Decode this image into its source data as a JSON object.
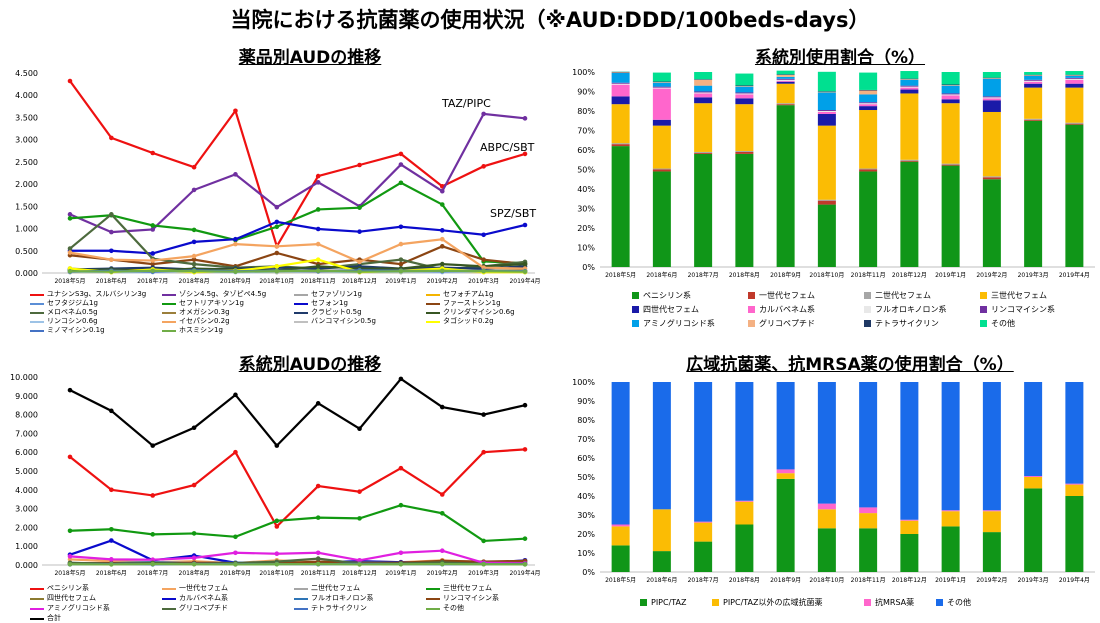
{
  "page": {
    "title": "当院における抗菌薬の使用状況（※AUD:DDD/100beds-days）"
  },
  "months": [
    "2018年5月",
    "2018年6月",
    "2018年7月",
    "2018年8月",
    "2018年9月",
    "2018年10月",
    "2018年11月",
    "2018年12月",
    "2019年1月",
    "2019年2月",
    "2019年3月",
    "2019年4月"
  ],
  "chart_data": [
    {
      "id": "drug_aud",
      "type": "line",
      "title": "薬品別AUDの推移",
      "ylim": [
        0,
        4.5
      ],
      "yticks": [
        "0.000",
        "0.500",
        "1.000",
        "1.500",
        "2.000",
        "2.500",
        "3.000",
        "3.500",
        "4.000",
        "4.500"
      ],
      "annotations": [
        "TAZ/PIPC",
        "ABPC/SBT",
        "SPZ/SBT"
      ],
      "series": [
        {
          "name": "ユナシンS3g、スルバシリン3g",
          "color": "#ee1111",
          "values": [
            4.32,
            3.04,
            2.7,
            2.38,
            3.65,
            0.6,
            2.18,
            2.43,
            2.68,
            1.95,
            2.4,
            2.68
          ]
        },
        {
          "name": "ゾシン4.5g、タゾピペ4.5g",
          "color": "#7030a0",
          "values": [
            1.32,
            0.92,
            0.98,
            1.87,
            2.22,
            1.48,
            2.04,
            1.5,
            2.44,
            1.84,
            3.58,
            3.48
          ]
        },
        {
          "name": "セファゾリン1g",
          "color": "#a6a6a6",
          "values": [
            0.05,
            0.03,
            0.04,
            0.03,
            0.05,
            0.06,
            0.04,
            0.03,
            0.05,
            0.05,
            0.04,
            0.04
          ]
        },
        {
          "name": "セフォチアム1g",
          "color": "#f4b400",
          "values": [
            0.02,
            0.02,
            0.03,
            0.02,
            0.03,
            0.02,
            0.03,
            0.02,
            0.02,
            0.03,
            0.02,
            0.02
          ]
        },
        {
          "name": "セフタジジム1g",
          "color": "#5b8ed6",
          "values": [
            0.05,
            0.04,
            0.05,
            0.06,
            0.04,
            0.05,
            0.05,
            0.06,
            0.05,
            0.05,
            0.04,
            0.05
          ]
        },
        {
          "name": "セフトリアキソン1g",
          "color": "#119911",
          "values": [
            1.23,
            1.3,
            1.07,
            0.97,
            0.74,
            1.04,
            1.43,
            1.47,
            2.03,
            1.54,
            0.26,
            0.22
          ]
        },
        {
          "name": "セフォン1g",
          "color": "#0a0acc",
          "values": [
            0.5,
            0.5,
            0.44,
            0.7,
            0.76,
            1.15,
            0.99,
            0.93,
            1.04,
            0.96,
            0.86,
            1.08
          ]
        },
        {
          "name": "ファーストシン1g",
          "color": "#8b4513",
          "values": [
            0.4,
            0.3,
            0.2,
            0.3,
            0.15,
            0.45,
            0.2,
            0.3,
            0.2,
            0.6,
            0.3,
            0.2
          ]
        },
        {
          "name": "メロペネム0.5g",
          "color": "#4d6a3d",
          "values": [
            0.55,
            1.32,
            0.32,
            0.2,
            0.12,
            0.15,
            0.1,
            0.2,
            0.3,
            0.08,
            0.15,
            0.25
          ]
        },
        {
          "name": "オメガシン0.3g",
          "color": "#9b7f3b",
          "values": [
            0.1,
            0.05,
            0.08,
            0.05,
            0.06,
            0.04,
            0.05,
            0.06,
            0.05,
            0.04,
            0.06,
            0.05
          ]
        },
        {
          "name": "クラビット0.5g",
          "color": "#1f3a6b",
          "values": [
            0.08,
            0.1,
            0.12,
            0.08,
            0.1,
            0.12,
            0.1,
            0.15,
            0.1,
            0.12,
            0.1,
            0.15
          ]
        },
        {
          "name": "クリンダマイシン0.6g",
          "color": "#375623",
          "values": [
            0.06,
            0.08,
            0.05,
            0.1,
            0.08,
            0.06,
            0.15,
            0.1,
            0.1,
            0.2,
            0.15,
            0.2
          ]
        },
        {
          "name": "リンコシン0.6g",
          "color": "#9dc3e6",
          "values": [
            0.02,
            0.02,
            0.02,
            0.03,
            0.02,
            0.02,
            0.03,
            0.02,
            0.02,
            0.02,
            0.03,
            0.02
          ]
        },
        {
          "name": "イセパシン0.2g",
          "color": "#f4a460",
          "values": [
            0.46,
            0.3,
            0.28,
            0.38,
            0.65,
            0.6,
            0.65,
            0.25,
            0.65,
            0.76,
            0.12,
            0.1
          ]
        },
        {
          "name": "バンコマイシン0.5g",
          "color": "#c0c0c0",
          "values": [
            0.03,
            0.04,
            0.03,
            0.04,
            0.05,
            0.03,
            0.04,
            0.05,
            0.03,
            0.04,
            0.03,
            0.04
          ]
        },
        {
          "name": "タゴシッド0.2g",
          "color": "#ffff00",
          "values": [
            0.1,
            0.02,
            0.08,
            0.02,
            0.05,
            0.15,
            0.3,
            0.02,
            0.05,
            0.1,
            0.02,
            0.02
          ]
        },
        {
          "name": "ミノマイシン0.1g",
          "color": "#4472c4",
          "values": [
            0.03,
            0.05,
            0.03,
            0.06,
            0.04,
            0.05,
            0.04,
            0.06,
            0.05,
            0.04,
            0.05,
            0.04
          ]
        },
        {
          "name": "ホスミシン1g",
          "color": "#70ad47",
          "values": [
            0.04,
            0.03,
            0.05,
            0.04,
            0.03,
            0.04,
            0.05,
            0.03,
            0.04,
            0.05,
            0.04,
            0.03
          ]
        }
      ]
    },
    {
      "id": "class_share",
      "type": "bar",
      "stacked": true,
      "title": "系統別使用割合（%）",
      "yticks": [
        "0%",
        "10%",
        "20%",
        "30%",
        "40%",
        "50%",
        "60%",
        "70%",
        "80%",
        "90%",
        "100%"
      ],
      "series": [
        {
          "name": "ペニシリン系",
          "color": "#109618",
          "values": [
            62,
            49,
            58,
            58,
            83,
            32,
            49,
            54,
            52,
            45,
            75,
            73
          ]
        },
        {
          "name": "一世代セフェム",
          "color": "#c0392b",
          "values": [
            1,
            1,
            0.5,
            1,
            0.5,
            2,
            1,
            0.5,
            0.5,
            1,
            0.5,
            0.5
          ]
        },
        {
          "name": "二世代セフェム",
          "color": "#a6a6a6",
          "values": [
            0.5,
            0.5,
            0.5,
            0.5,
            0.5,
            0.5,
            0.5,
            0.5,
            0.5,
            0.5,
            0.5,
            0.5
          ]
        },
        {
          "name": "三世代セフェム",
          "color": "#fbbc04",
          "values": [
            20,
            22,
            25,
            24,
            10,
            38,
            30,
            34,
            31,
            33,
            16,
            18
          ]
        },
        {
          "name": "四世代セフェム",
          "color": "#1a1aa8",
          "values": [
            4,
            3,
            3,
            3,
            1,
            6,
            2,
            2,
            2,
            6,
            2,
            2
          ]
        },
        {
          "name": "カルバペネム系",
          "color": "#ff66cc",
          "values": [
            6,
            16,
            2,
            2,
            0.5,
            1,
            1,
            1,
            2,
            1,
            1,
            2
          ]
        },
        {
          "name": "フルオロキノロン系",
          "color": "#e8e8e8",
          "values": [
            0.5,
            0.5,
            0.5,
            0.5,
            0.5,
            0.5,
            0.5,
            0.5,
            0.5,
            0.5,
            0.5,
            0.5
          ]
        },
        {
          "name": "リンコマイシン系",
          "color": "#7030a0",
          "values": [
            0.5,
            0.5,
            0.5,
            0.5,
            0.5,
            0.5,
            0.5,
            0.5,
            0.5,
            0.5,
            0.5,
            0.5
          ]
        },
        {
          "name": "アミノグリコシド系",
          "color": "#00a0e8",
          "values": [
            5,
            2,
            3,
            3,
            1,
            9,
            4,
            3,
            4,
            9,
            2,
            1
          ]
        },
        {
          "name": "グリコペプチド",
          "color": "#f4b183",
          "values": [
            0.3,
            0.3,
            3,
            0.3,
            1,
            0.3,
            2,
            0.3,
            0.3,
            0.3,
            0.3,
            0.3
          ]
        },
        {
          "name": "テトラサイクリン",
          "color": "#1f3864",
          "values": [
            0.3,
            0.3,
            0.3,
            0.3,
            0.3,
            0.3,
            0.3,
            0.3,
            0.3,
            0.3,
            0.3,
            0.3
          ]
        },
        {
          "name": "その他",
          "color": "#00e090",
          "values": [
            0.1,
            4.6,
            3.7,
            6.1,
            1.9,
            10,
            8.9,
            3.9,
            6.4,
            2.9,
            1.4,
            1.9
          ]
        }
      ]
    },
    {
      "id": "class_aud",
      "type": "line",
      "title": "系統別AUDの推移",
      "ylim": [
        0,
        10
      ],
      "yticks": [
        "0.000",
        "1.000",
        "2.000",
        "3.000",
        "4.000",
        "5.000",
        "6.000",
        "7.000",
        "8.000",
        "9.000",
        "10.000"
      ],
      "series": [
        {
          "name": "ペニシリン系",
          "color": "#ee1111",
          "values": [
            5.75,
            4.0,
            3.7,
            4.25,
            6.0,
            2.05,
            4.2,
            3.9,
            5.15,
            3.75,
            6.0,
            6.15
          ]
        },
        {
          "name": "一世代セフェム",
          "color": "#f4a460",
          "values": [
            0.3,
            0.2,
            0.15,
            0.2,
            0.1,
            0.25,
            0.15,
            0.2,
            0.15,
            0.25,
            0.15,
            0.2
          ]
        },
        {
          "name": "二世代セフェム",
          "color": "#a6a6a6",
          "values": [
            0.05,
            0.05,
            0.05,
            0.05,
            0.05,
            0.05,
            0.05,
            0.05,
            0.05,
            0.05,
            0.05,
            0.05
          ]
        },
        {
          "name": "三世代セフェム",
          "color": "#119911",
          "values": [
            1.82,
            1.9,
            1.63,
            1.68,
            1.5,
            2.35,
            2.52,
            2.48,
            3.18,
            2.75,
            1.28,
            1.4
          ]
        },
        {
          "name": "四世代セフェム",
          "color": "#8c7a30",
          "values": [
            0.05,
            0.05,
            0.05,
            0.05,
            0.05,
            0.05,
            0.05,
            0.05,
            0.05,
            0.05,
            0.05,
            0.05
          ]
        },
        {
          "name": "カルバペネム系",
          "color": "#0a0acc",
          "values": [
            0.55,
            1.3,
            0.25,
            0.5,
            0.12,
            0.1,
            0.15,
            0.2,
            0.15,
            0.1,
            0.1,
            0.25
          ]
        },
        {
          "name": "フルオロキノロン系",
          "color": "#2e75b6",
          "values": [
            0.1,
            0.1,
            0.15,
            0.1,
            0.12,
            0.15,
            0.12,
            0.15,
            0.12,
            0.15,
            0.12,
            0.15
          ]
        },
        {
          "name": "リンコマイシン系",
          "color": "#8b4513",
          "values": [
            0.08,
            0.1,
            0.06,
            0.12,
            0.1,
            0.08,
            0.18,
            0.12,
            0.12,
            0.22,
            0.18,
            0.22
          ]
        },
        {
          "name": "アミノグリコシド系",
          "color": "#e020e0",
          "values": [
            0.46,
            0.3,
            0.28,
            0.38,
            0.65,
            0.6,
            0.65,
            0.25,
            0.65,
            0.76,
            0.12,
            0.1
          ]
        },
        {
          "name": "グリコペプチド",
          "color": "#4d6a3d",
          "values": [
            0.12,
            0.06,
            0.11,
            0.06,
            0.1,
            0.18,
            0.34,
            0.07,
            0.08,
            0.14,
            0.05,
            0.06
          ]
        },
        {
          "name": "テトラサイクリン",
          "color": "#4472c4",
          "values": [
            0.03,
            0.05,
            0.03,
            0.06,
            0.04,
            0.05,
            0.04,
            0.06,
            0.05,
            0.04,
            0.05,
            0.04
          ]
        },
        {
          "name": "その他",
          "color": "#70ad47",
          "values": [
            0.04,
            0.03,
            0.05,
            0.04,
            0.03,
            0.04,
            0.05,
            0.03,
            0.04,
            0.05,
            0.04,
            0.03
          ]
        },
        {
          "name": "合計",
          "color": "#000000",
          "values": [
            9.3,
            8.2,
            6.35,
            7.3,
            9.05,
            6.35,
            8.6,
            7.25,
            9.9,
            8.4,
            8.0,
            8.5
          ]
        }
      ]
    },
    {
      "id": "broad_share",
      "type": "bar",
      "stacked": true,
      "title": "広域抗菌薬、抗MRSA薬の使用割合（%）",
      "yticks": [
        "0%",
        "10%",
        "20%",
        "30%",
        "40%",
        "50%",
        "60%",
        "70%",
        "80%",
        "90%",
        "100%"
      ],
      "series": [
        {
          "name": "PIPC/TAZ",
          "color": "#109618",
          "values": [
            14,
            11,
            16,
            25,
            49,
            23,
            23,
            20,
            24,
            21,
            44,
            40
          ]
        },
        {
          "name": "PIPC/TAZ以外の広域抗菌薬",
          "color": "#fbbc04",
          "values": [
            10,
            22,
            10,
            12,
            3,
            10,
            8,
            7,
            8,
            11,
            6,
            6
          ]
        },
        {
          "name": "抗MRSA薬",
          "color": "#ff66cc",
          "values": [
            1,
            0,
            0.5,
            0.5,
            2,
            3,
            3,
            0.5,
            0.5,
            0.5,
            0.5,
            0.5
          ]
        },
        {
          "name": "その他",
          "color": "#1a6bea",
          "values": [
            75,
            67,
            73.5,
            62.5,
            46,
            64,
            66,
            72.5,
            67.5,
            67.5,
            49.5,
            53.5
          ]
        }
      ]
    }
  ]
}
